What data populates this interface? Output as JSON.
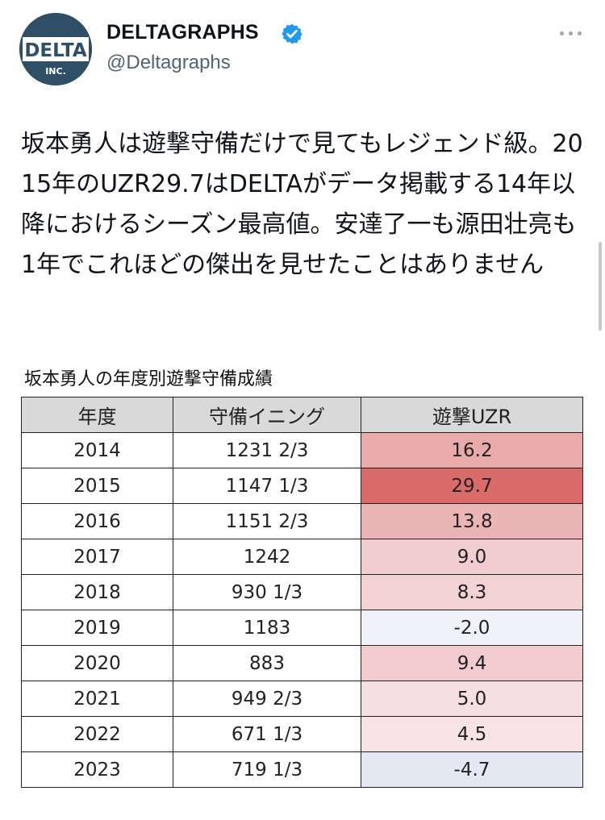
{
  "user": {
    "display_name": "DELTAGRAPHS",
    "handle": "@Deltagraphs",
    "avatar_text_main": "DELTA",
    "avatar_text_sub": "INC.",
    "avatar_color": "#2e4f66",
    "verified_color": "#1d9bf0"
  },
  "tweet": {
    "text": "坂本勇人は遊撃守備だけで見てもレジェンド級。2015年のUZR29.7はDELTAがデータ掲載する14年以降におけるシーズン最高値。安達了一も源田壮亮も1年でこれほどの傑出を見せたことはありません"
  },
  "table": {
    "caption": "坂本勇人の年度別遊撃守備成績",
    "headers": [
      "年度",
      "守備イニング",
      "遊撃UZR"
    ],
    "rows": [
      {
        "year": "2014",
        "innings": "1231 2/3",
        "uzr": "16.2",
        "color": "#e9aaaa"
      },
      {
        "year": "2015",
        "innings": "1147 1/3",
        "uzr": "29.7",
        "color": "#db6b6a"
      },
      {
        "year": "2016",
        "innings": "1151 2/3",
        "uzr": "13.8",
        "color": "#ebb5b5"
      },
      {
        "year": "2017",
        "innings": "1242",
        "uzr": "9.0",
        "color": "#f2cdd0"
      },
      {
        "year": "2018",
        "innings": "930 1/3",
        "uzr": "8.3",
        "color": "#f3d2d4"
      },
      {
        "year": "2019",
        "innings": "1183",
        "uzr": "-2.0",
        "color": "#eef2f8"
      },
      {
        "year": "2020",
        "innings": "883",
        "uzr": "9.4",
        "color": "#f1cbce"
      },
      {
        "year": "2021",
        "innings": "949 2/3",
        "uzr": "5.0",
        "color": "#f5dfe2"
      },
      {
        "year": "2022",
        "innings": "671 1/3",
        "uzr": "4.5",
        "color": "#f7e3e6"
      },
      {
        "year": "2023",
        "innings": "719 1/3",
        "uzr": "-4.7",
        "color": "#e3e8f2"
      }
    ]
  }
}
